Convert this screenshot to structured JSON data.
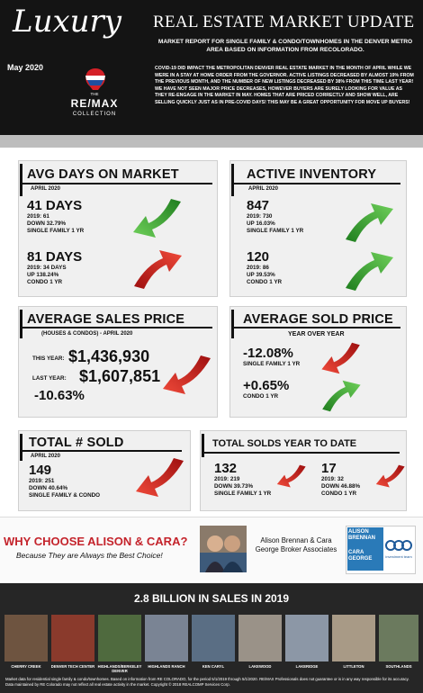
{
  "header": {
    "script_title": "Luxury",
    "title": "REAL ESTATE MARKET UPDATE",
    "subtitle": "MARKET REPORT FOR SINGLE FAMILY & CONDO/TOWNHOMES IN THE DENVER METRO AREA BASED ON INFORMATION FROM RECOLORADO.",
    "date": "May 2020",
    "logo": {
      "top": "THE",
      "name": "RE/MAX",
      "bottom": "COLLECTION"
    },
    "intro": "COVID-19 DID IMPACT THE METROPOLITAN DENVER REAL ESTATE MARKET IN THE MONTH OF APRIL WHILE WE WERE IN A STAY AT HOME ORDER FROM THE GOVERNOR.  ACTIVE LISTINGS DECREASED BY ALMOST 19% FROM THE PREVIOUS MONTH, AND THE NUMBER OF NEW LISTINGS DECREASED BY 38% FROM THIS TIME LAST YEAR!  WE HAVE NOT SEEN MAJOR PRICE DECREASES, HOWEVER BUYERS ARE SURELY LOOKING FOR VALUE AS THEY RE-ENGAGE IN THE MARKET IN MAY.  HOMES THAT ARE PRICED CORRECTLY AND SHOW WELL, ARE SELLING QUICKLY JUST AS IN PRE-COVID DAYS!  THIS MAY BE A GREAT OPPORTUNITY FOR MOVE UP BUYERS!"
  },
  "panels": [
    {
      "title": "AVG DAYS ON MARKET",
      "subtitle": "APRIL 2020",
      "stats": [
        {
          "value": "41 DAYS",
          "lines": [
            "2019: 61",
            "DOWN 32.79%",
            "SINGLE FAMILY 1 YR"
          ]
        },
        {
          "value": "81 DAYS",
          "lines": [
            "2019: 34 DAYS",
            "UP 138.24%",
            "CONDO 1 YR"
          ]
        }
      ]
    },
    {
      "title": "ACTIVE INVENTORY",
      "subtitle": "APRIL 2020",
      "stats": [
        {
          "value": "847",
          "lines": [
            "2019: 730",
            "UP 16.03%",
            "SINGLE FAMILY 1 YR"
          ]
        },
        {
          "value": "120",
          "lines": [
            "2019: 86",
            "UP 39.53%",
            "CONDO 1 YR"
          ]
        }
      ]
    },
    {
      "title": "AVERAGE SALES PRICE",
      "subtitle": "(HOUSES & CONDOS) - APRIL 2020",
      "rows": [
        {
          "label": "THIS YEAR:",
          "value": "$1,436,930"
        },
        {
          "label": "LAST YEAR:",
          "value": "$1,607,851"
        }
      ],
      "change": "-10.63%"
    },
    {
      "title": "AVERAGE SOLD PRICE",
      "subtitle": "YEAR OVER YEAR",
      "stats": [
        {
          "value": "-12.08%",
          "lines": [
            "SINGLE FAMILY 1 YR"
          ]
        },
        {
          "value": "+0.65%",
          "lines": [
            "CONDO 1 YR"
          ]
        }
      ]
    },
    {
      "title": "TOTAL # SOLD",
      "subtitle": "APRIL 2020",
      "stats": [
        {
          "value": "149",
          "lines": [
            "2019: 251",
            "DOWN 40.64%",
            "SINGLE FAMILY & CONDO"
          ]
        }
      ]
    },
    {
      "title": "TOTAL SOLDS YEAR TO DATE",
      "stats": [
        {
          "value": "132",
          "lines": [
            "2019: 219",
            "DOWN 39.73%",
            "SINGLE FAMILY 1 YR"
          ]
        },
        {
          "value": "17",
          "lines": [
            "2019: 32",
            "DOWN 46.88%",
            "CONDO 1 YR"
          ]
        }
      ]
    }
  ],
  "promo": {
    "headline": "WHY CHOOSE ALISON & CARA?",
    "tagline": "Because They are Always the Best Choice!",
    "agents": "Alison Brennan & Cara George Broker Associates",
    "logo": {
      "name1": "ALISON BRENNAN",
      "name2": "CARA GEORGE",
      "team": "investment team"
    }
  },
  "footer": {
    "title": "2.8 BILLION IN SALES IN 2019",
    "areas": [
      "CHERRY CREEK",
      "DENVER TECH CENTER",
      "HIGHLANDS/BERKELEY DENVER",
      "HIGHLANDS RANCH",
      "KEN CARYL",
      "LAKEWOOD",
      "LAKERIDGE",
      "LITTLETON",
      "SOUTHLANDS"
    ],
    "disclaimer": "Market data for residential single family & condo/townhomes. Based on information from RE COLORADO, for the period 5/1/2019 through 5/1/2020. RE/MAX Professionals does not guarantee or is in any way responsible for its accuracy. Data maintained by RE Colorado may not reflect all real estate activity in the market. Copyright © 2018 REALCOMP Services Corp."
  }
}
